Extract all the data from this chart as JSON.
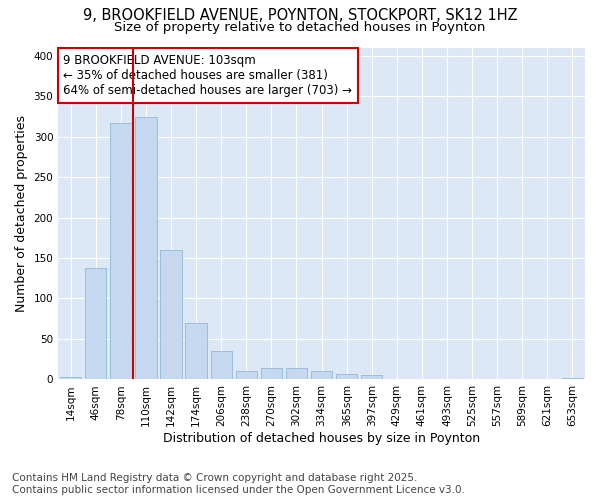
{
  "title_line1": "9, BROOKFIELD AVENUE, POYNTON, STOCKPORT, SK12 1HZ",
  "title_line2": "Size of property relative to detached houses in Poynton",
  "xlabel": "Distribution of detached houses by size in Poynton",
  "ylabel": "Number of detached properties",
  "categories": [
    "14sqm",
    "46sqm",
    "78sqm",
    "110sqm",
    "142sqm",
    "174sqm",
    "206sqm",
    "238sqm",
    "270sqm",
    "302sqm",
    "334sqm",
    "365sqm",
    "397sqm",
    "429sqm",
    "461sqm",
    "493sqm",
    "525sqm",
    "557sqm",
    "589sqm",
    "621sqm",
    "653sqm"
  ],
  "values": [
    3,
    138,
    317,
    324,
    160,
    70,
    35,
    10,
    14,
    14,
    11,
    7,
    5,
    1,
    1,
    1,
    0,
    0,
    0,
    0,
    2
  ],
  "bar_color": "#c5d8ef",
  "bar_edge_color": "#90b8d8",
  "vline_color": "#cc0000",
  "vline_index": 3,
  "annotation_line1": "9 BROOKFIELD AVENUE: 103sqm",
  "annotation_line2": "← 35% of detached houses are smaller (381)",
  "annotation_line3": "64% of semi-detached houses are larger (703) →",
  "annotation_box_color": "#ffffff",
  "annotation_box_edge": "#cc0000",
  "ylim": [
    0,
    410
  ],
  "yticks": [
    0,
    50,
    100,
    150,
    200,
    250,
    300,
    350,
    400
  ],
  "footer_line1": "Contains HM Land Registry data © Crown copyright and database right 2025.",
  "footer_line2": "Contains public sector information licensed under the Open Government Licence v3.0.",
  "fig_bg_color": "#ffffff",
  "plot_bg_color": "#dce8f5",
  "grid_color": "#ffffff",
  "title_fontsize": 10.5,
  "subtitle_fontsize": 9.5,
  "axis_label_fontsize": 9,
  "tick_fontsize": 7.5,
  "annotation_fontsize": 8.5,
  "footer_fontsize": 7.5
}
